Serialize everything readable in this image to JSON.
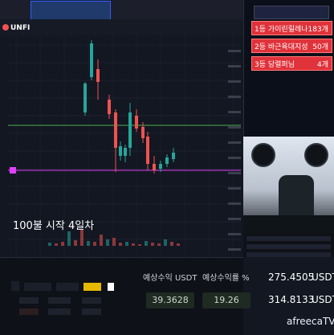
{
  "header": {
    "symbol": "UNFI"
  },
  "chart": {
    "caption": "100불 시작 4일차"
  },
  "rank_panel": {
    "title": "",
    "items": [
      {
        "label": "1등 가이린릴레나",
        "value": "183개"
      },
      {
        "label": "2등 바근육대지성",
        "value": "50개"
      },
      {
        "label": "3등 당렬퍼님",
        "value": "4개"
      }
    ]
  },
  "pnl": {
    "label_usdt": "예상수익 USDT",
    "label_pct": "예상수익률 %",
    "value_usdt": "39.3628",
    "value_pct": "19.26",
    "total_top": "275.4505",
    "total_top_unit": "USDT",
    "total_bottom": "314.8133",
    "total_bottom_unit": "USDT"
  },
  "colors": {
    "bg": "#131722",
    "up": "#26a69a",
    "down": "#ef5350",
    "level_green": "#4caf50",
    "level_pink": "#e040fb",
    "rank_red": "#e0323a"
  },
  "icons": {
    "brand": "afreecatv-logo"
  },
  "branding": {
    "afreeca": "afreecaTV"
  }
}
